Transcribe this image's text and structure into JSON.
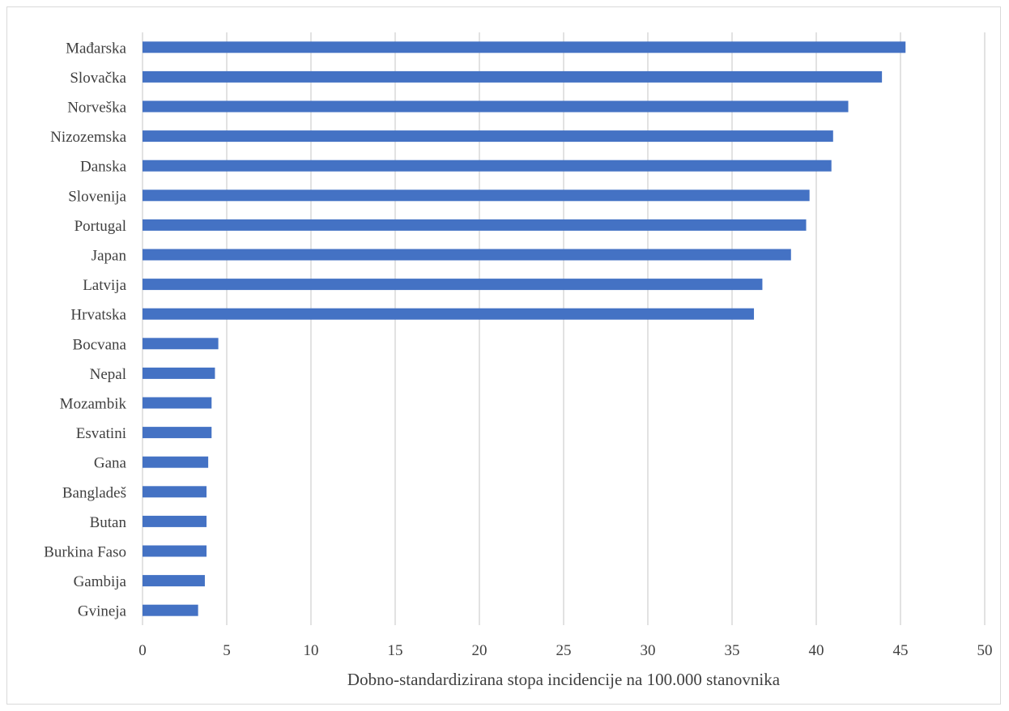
{
  "chart_data": {
    "type": "bar",
    "orientation": "horizontal",
    "title": "",
    "xlabel": "Dobno-standardizirana stopa incidencije na 100.000 stanovnika",
    "ylabel": "",
    "xlim": [
      0,
      50
    ],
    "xticks": [
      "0",
      "5",
      "10",
      "15",
      "20",
      "25",
      "30",
      "35",
      "40",
      "45",
      "50"
    ],
    "grid": "vertical",
    "bar_color": "#4472c4",
    "categories": [
      "Mađarska",
      "Slovačka",
      "Norveška",
      "Nizozemska",
      "Danska",
      "Slovenija",
      "Portugal",
      "Japan",
      "Latvija",
      "Hrvatska",
      "Bocvana",
      "Nepal",
      "Mozambik",
      "Esvatini",
      "Gana",
      "Bangladeš",
      "Butan",
      "Burkina Faso",
      "Gambija",
      "Gvineja"
    ],
    "values": [
      45.3,
      43.9,
      41.9,
      41.0,
      40.9,
      39.6,
      39.4,
      38.5,
      36.8,
      36.3,
      4.5,
      4.3,
      4.1,
      4.1,
      3.9,
      3.8,
      3.8,
      3.8,
      3.7,
      3.3
    ]
  }
}
